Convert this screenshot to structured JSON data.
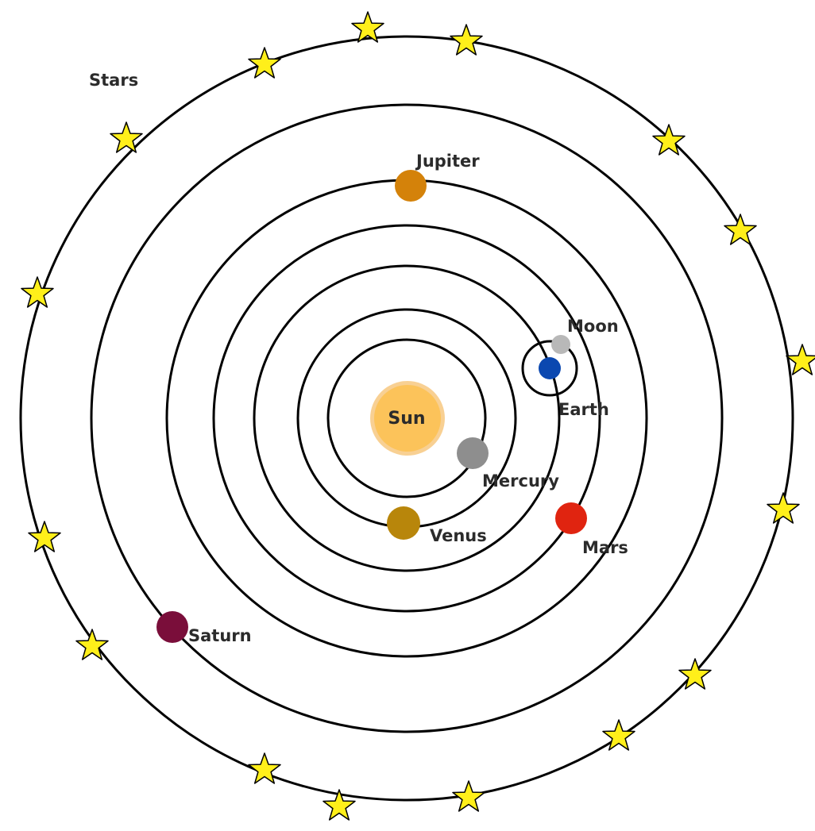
{
  "labels": {
    "stars": "Stars",
    "sun": "Sun",
    "mercury": "Mercury",
    "venus": "Venus",
    "earth": "Earth",
    "moon": "Moon",
    "mars": "Mars",
    "jupiter": "Jupiter",
    "saturn": "Saturn"
  },
  "colors": {
    "sun": "#fcc35a",
    "sun_rim": "#f2a93b",
    "mercury": "#8e8e8e",
    "venus": "#b8860b",
    "earth": "#0b48b0",
    "moon": "#b8b8b8",
    "mars": "#e02410",
    "jupiter": "#d4820a",
    "saturn": "#7a0e3a",
    "star": "#ffef1a"
  }
}
